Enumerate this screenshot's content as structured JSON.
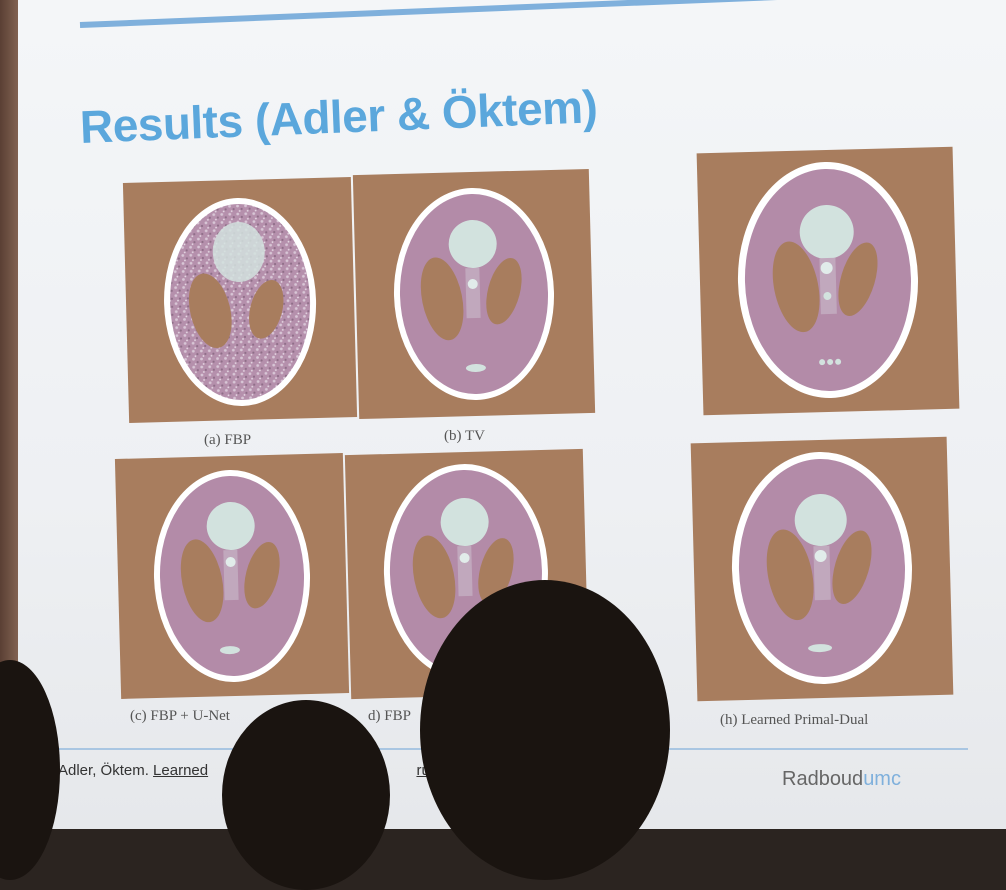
{
  "slide": {
    "title": "Results (Adler & Öktem)",
    "citation_author": "Adler, Öktem.",
    "citation_link_a": "Learned",
    "citation_link_b": "ructio",
    "logo_main": "Radboud",
    "logo_suffix": "umc"
  },
  "panels": [
    {
      "key": "fbp",
      "caption": "(a) FBP"
    },
    {
      "key": "tv",
      "caption": "(b) TV"
    },
    {
      "key": "truth",
      "caption": ""
    },
    {
      "key": "fbp-unet",
      "caption": "(c) FBP + U-Net"
    },
    {
      "key": "fbp-d",
      "caption": "d) FBP"
    },
    {
      "key": "primal-dual",
      "caption": "(h) Learned Primal-Dual"
    }
  ],
  "colors": {
    "background_brown": "#a87d5e",
    "phantom_pink": "#b58fae",
    "phantom_ring": "#ffffff",
    "title_blue": "#5ba7dc"
  }
}
